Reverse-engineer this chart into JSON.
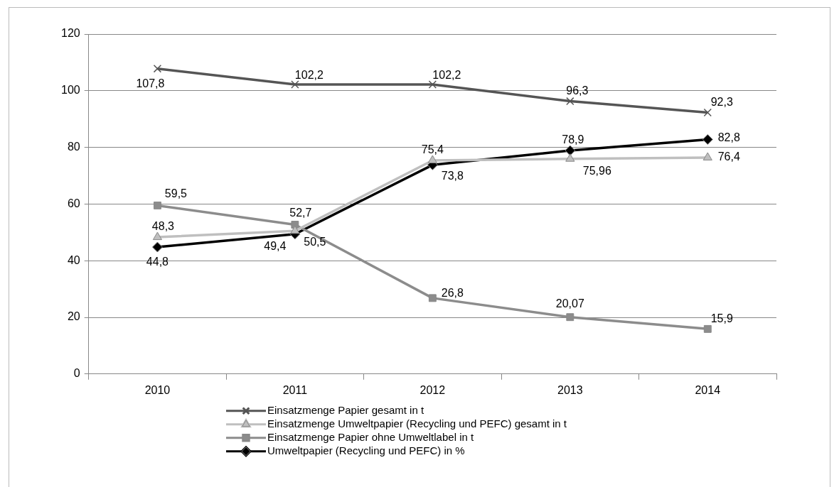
{
  "chart_data": {
    "type": "line",
    "categories": [
      "2010",
      "2011",
      "2012",
      "2013",
      "2014"
    ],
    "series": [
      {
        "name": "Einsatzmenge Papier gesamt in t",
        "color": "#555555",
        "marker": "cross",
        "values": [
          107.8,
          102.2,
          102.2,
          96.3,
          92.3
        ],
        "value_labels": [
          "107,8",
          "102,2",
          "102,2",
          "96,3",
          "92,3"
        ]
      },
      {
        "name": "Einsatzmenge Umweltpapier (Recycling und PEFC) gesamt in t",
        "color": "#bfbfbf",
        "marker": "triangle",
        "values": [
          48.3,
          50.5,
          75.4,
          75.96,
          76.4
        ],
        "value_labels": [
          "48,3",
          "50,5",
          "75,4",
          "75,96",
          "76,4"
        ]
      },
      {
        "name": "Einsatzmenge Papier ohne Umweltlabel in t",
        "color": "#8c8c8c",
        "marker": "square",
        "values": [
          59.5,
          52.7,
          26.8,
          20.07,
          15.9
        ],
        "value_labels": [
          "59,5",
          "52,7",
          "26,8",
          "20,07",
          "15,9"
        ]
      },
      {
        "name": "Umweltpapier (Recycling und PEFC) in %",
        "color": "#000000",
        "marker": "diamond",
        "values": [
          44.8,
          49.4,
          73.8,
          78.9,
          82.8
        ],
        "value_labels": [
          "44,8",
          "49,4",
          "73,8",
          "78,9",
          "82,8"
        ]
      }
    ],
    "ylim": [
      0,
      120
    ],
    "yticks": [
      0,
      20,
      40,
      60,
      80,
      100,
      120
    ],
    "grid": "y",
    "legend": "bottom",
    "line_style": "solid"
  }
}
